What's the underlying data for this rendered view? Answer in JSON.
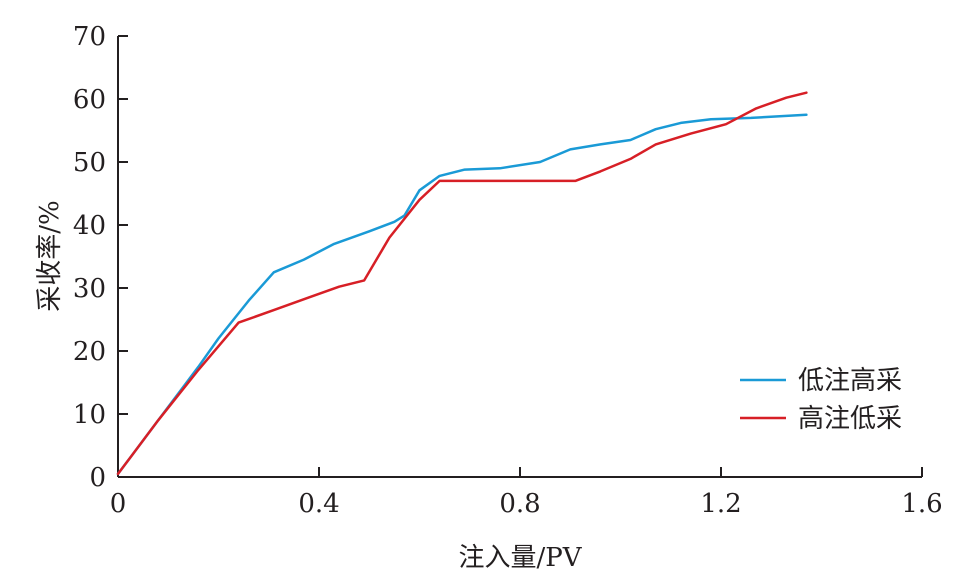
{
  "chart_data": {
    "type": "line",
    "title": "",
    "xlabel": "注入量/PV",
    "ylabel": "采收率/%",
    "xlim": [
      0,
      1.6
    ],
    "ylim": [
      0,
      70
    ],
    "xticks": [
      0,
      0.4,
      0.8,
      1.2,
      1.6
    ],
    "xtick_labels": [
      "0",
      "0.4",
      "0.8",
      "1.2",
      "1.6"
    ],
    "yticks": [
      0,
      10,
      20,
      30,
      40,
      50,
      60,
      70
    ],
    "ytick_labels": [
      "0",
      "10",
      "20",
      "30",
      "40",
      "50",
      "60",
      "70"
    ],
    "grid": false,
    "legend_position": "bottom-right",
    "series": [
      {
        "name": "低注高采",
        "color": "#1a9ad6",
        "x": [
          0,
          0.08,
          0.16,
          0.2,
          0.26,
          0.31,
          0.37,
          0.43,
          0.5,
          0.55,
          0.57,
          0.6,
          0.64,
          0.69,
          0.76,
          0.84,
          0.9,
          0.96,
          1.02,
          1.07,
          1.12,
          1.18,
          1.26,
          1.37
        ],
        "y": [
          0.5,
          9,
          17.5,
          22,
          28,
          32.5,
          34.5,
          37,
          39,
          40.5,
          41.5,
          45.5,
          47.8,
          48.8,
          49,
          50,
          52,
          52.8,
          53.5,
          55.2,
          56.2,
          56.8,
          57,
          57.5
        ]
      },
      {
        "name": "高注低采",
        "color": "#d71f26",
        "x": [
          0,
          0.08,
          0.16,
          0.24,
          0.31,
          0.38,
          0.44,
          0.49,
          0.54,
          0.6,
          0.64,
          0.7,
          0.8,
          0.91,
          0.96,
          1.02,
          1.07,
          1.14,
          1.21,
          1.27,
          1.33,
          1.37
        ],
        "y": [
          0.5,
          9,
          17,
          24.5,
          26.5,
          28.5,
          30.2,
          31.2,
          38,
          44,
          47,
          47,
          47,
          47,
          48.5,
          50.5,
          52.8,
          54.5,
          56,
          58.5,
          60.2,
          61
        ]
      }
    ]
  }
}
